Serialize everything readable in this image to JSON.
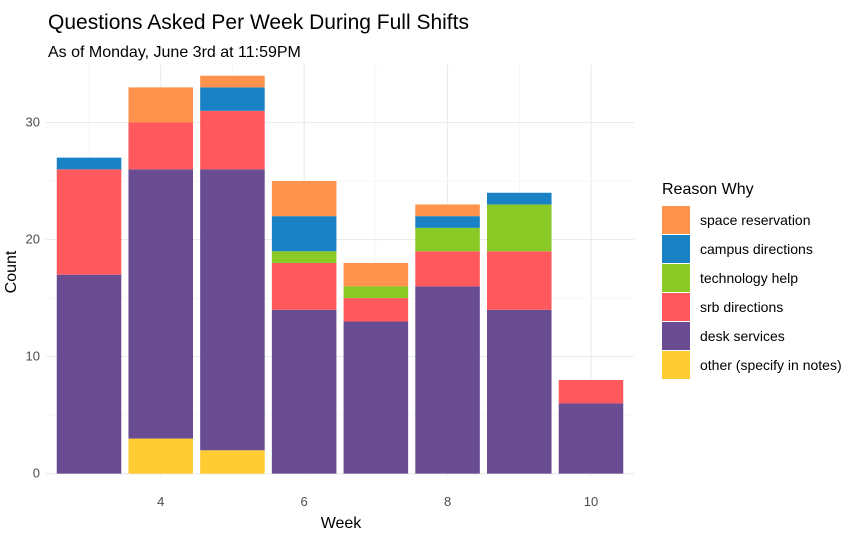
{
  "chart_data": {
    "type": "bar",
    "stacked": true,
    "title": "Questions Asked Per Week During Full Shifts",
    "subtitle": "As of Monday, June 3rd at 11:59PM",
    "xlabel": "Week",
    "ylabel": "Count",
    "x": [
      3,
      4,
      5,
      6,
      7,
      8,
      9,
      10
    ],
    "xticks": [
      4,
      6,
      8,
      10
    ],
    "xlim": [
      2.4,
      10.6
    ],
    "yticks": [
      0,
      10,
      20,
      30
    ],
    "ylim": [
      -0.2,
      35
    ],
    "grid": true,
    "legend": {
      "title": "Reason Why",
      "position": "right"
    },
    "series": [
      {
        "name": "other (specify in notes)",
        "color": "#ffcc33",
        "values": [
          0,
          3,
          2,
          0,
          0,
          0,
          0,
          0
        ]
      },
      {
        "name": "desk services",
        "color": "#6a4c93",
        "values": [
          17,
          23,
          24,
          14,
          13,
          16,
          14,
          6
        ]
      },
      {
        "name": "srb directions",
        "color": "#ff595e",
        "values": [
          9,
          4,
          5,
          4,
          2,
          3,
          5,
          2
        ]
      },
      {
        "name": "technology help",
        "color": "#8ac926",
        "values": [
          0,
          0,
          0,
          1,
          1,
          2,
          4,
          0
        ]
      },
      {
        "name": "campus directions",
        "color": "#1982c4",
        "values": [
          1,
          0,
          2,
          3,
          0,
          1,
          1,
          0
        ]
      },
      {
        "name": "space reservation",
        "color": "#ff924c",
        "values": [
          0,
          3,
          1,
          3,
          2,
          1,
          0,
          0
        ]
      }
    ]
  }
}
